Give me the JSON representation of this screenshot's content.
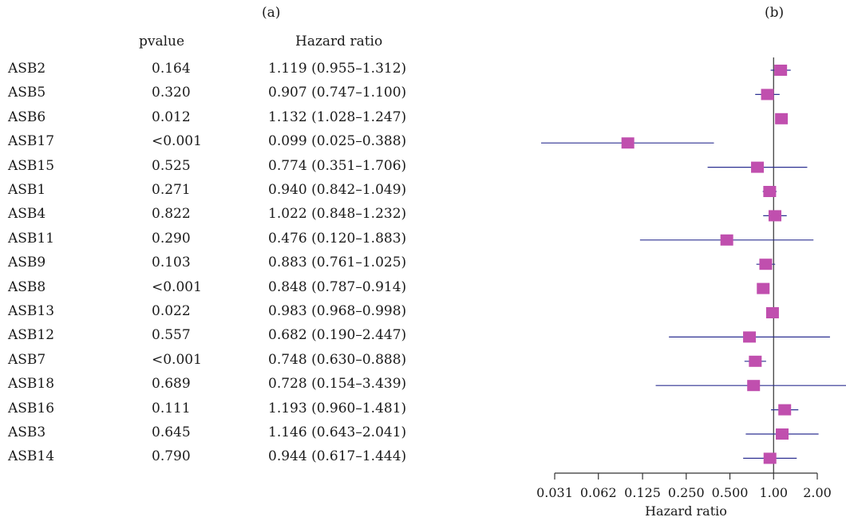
{
  "panels": {
    "left_label": "(a)",
    "right_label": "(b)"
  },
  "table": {
    "headers": {
      "pvalue": "pvalue",
      "hazard_ratio": "Hazard ratio"
    },
    "rows": [
      {
        "gene": "ASB2",
        "pvalue": "0.164",
        "hr_text": "1.119 (0.955–1.312)"
      },
      {
        "gene": "ASB5",
        "pvalue": "0.320",
        "hr_text": "0.907 (0.747–1.100)"
      },
      {
        "gene": "ASB6",
        "pvalue": "0.012",
        "hr_text": "1.132 (1.028–1.247)"
      },
      {
        "gene": "ASB17",
        "pvalue": "<0.001",
        "hr_text": "0.099 (0.025–0.388)"
      },
      {
        "gene": "ASB15",
        "pvalue": "0.525",
        "hr_text": "0.774 (0.351–1.706)"
      },
      {
        "gene": "ASB1",
        "pvalue": "0.271",
        "hr_text": "0.940 (0.842–1.049)"
      },
      {
        "gene": "ASB4",
        "pvalue": "0.822",
        "hr_text": "1.022 (0.848–1.232)"
      },
      {
        "gene": "ASB11",
        "pvalue": "0.290",
        "hr_text": "0.476 (0.120–1.883)"
      },
      {
        "gene": "ASB9",
        "pvalue": "0.103",
        "hr_text": "0.883 (0.761–1.025)"
      },
      {
        "gene": "ASB8",
        "pvalue": "<0.001",
        "hr_text": "0.848 (0.787–0.914)"
      },
      {
        "gene": "ASB13",
        "pvalue": "0.022",
        "hr_text": "0.983 (0.968–0.998)"
      },
      {
        "gene": "ASB12",
        "pvalue": "0.557",
        "hr_text": "0.682 (0.190–2.447)"
      },
      {
        "gene": "ASB7",
        "pvalue": "<0.001",
        "hr_text": "0.748 (0.630–0.888)"
      },
      {
        "gene": "ASB18",
        "pvalue": "0.689",
        "hr_text": "0.728 (0.154–3.439)"
      },
      {
        "gene": "ASB16",
        "pvalue": "0.111",
        "hr_text": "1.193 (0.960–1.481)"
      },
      {
        "gene": "ASB3",
        "pvalue": "0.645",
        "hr_text": "1.146 (0.643–2.041)"
      },
      {
        "gene": "ASB14",
        "pvalue": "0.790",
        "hr_text": "0.944 (0.617–1.444)"
      }
    ]
  },
  "chart_data": {
    "type": "forest",
    "xlabel": "Hazard ratio",
    "x_scale": "log2",
    "xlim": [
      0.031,
      2.0
    ],
    "x_ticks": [
      "0.031",
      "0.062",
      "0.125",
      "0.250",
      "0.500",
      "1.00",
      "2.00"
    ],
    "reference_line": 1.0,
    "colors": {
      "point": "#c04fae",
      "ci_line": "#2e3192",
      "axis": "#333333"
    },
    "points": [
      {
        "label": "ASB2",
        "hr": 1.119,
        "lower": 0.955,
        "upper": 1.312
      },
      {
        "label": "ASB5",
        "hr": 0.907,
        "lower": 0.747,
        "upper": 1.1
      },
      {
        "label": "ASB6",
        "hr": 1.132,
        "lower": 1.028,
        "upper": 1.247
      },
      {
        "label": "ASB17",
        "hr": 0.099,
        "lower": 0.025,
        "upper": 0.388
      },
      {
        "label": "ASB15",
        "hr": 0.774,
        "lower": 0.351,
        "upper": 1.706
      },
      {
        "label": "ASB1",
        "hr": 0.94,
        "lower": 0.842,
        "upper": 1.049
      },
      {
        "label": "ASB4",
        "hr": 1.022,
        "lower": 0.848,
        "upper": 1.232
      },
      {
        "label": "ASB11",
        "hr": 0.476,
        "lower": 0.12,
        "upper": 1.883
      },
      {
        "label": "ASB9",
        "hr": 0.883,
        "lower": 0.761,
        "upper": 1.025
      },
      {
        "label": "ASB8",
        "hr": 0.848,
        "lower": 0.787,
        "upper": 0.914
      },
      {
        "label": "ASB13",
        "hr": 0.983,
        "lower": 0.968,
        "upper": 0.998
      },
      {
        "label": "ASB12",
        "hr": 0.682,
        "lower": 0.19,
        "upper": 2.447
      },
      {
        "label": "ASB7",
        "hr": 0.748,
        "lower": 0.63,
        "upper": 0.888
      },
      {
        "label": "ASB18",
        "hr": 0.728,
        "lower": 0.154,
        "upper": 3.439
      },
      {
        "label": "ASB16",
        "hr": 1.193,
        "lower": 0.96,
        "upper": 1.481
      },
      {
        "label": "ASB3",
        "hr": 1.146,
        "lower": 0.643,
        "upper": 2.041
      },
      {
        "label": "ASB14",
        "hr": 0.944,
        "lower": 0.617,
        "upper": 1.444
      }
    ]
  }
}
